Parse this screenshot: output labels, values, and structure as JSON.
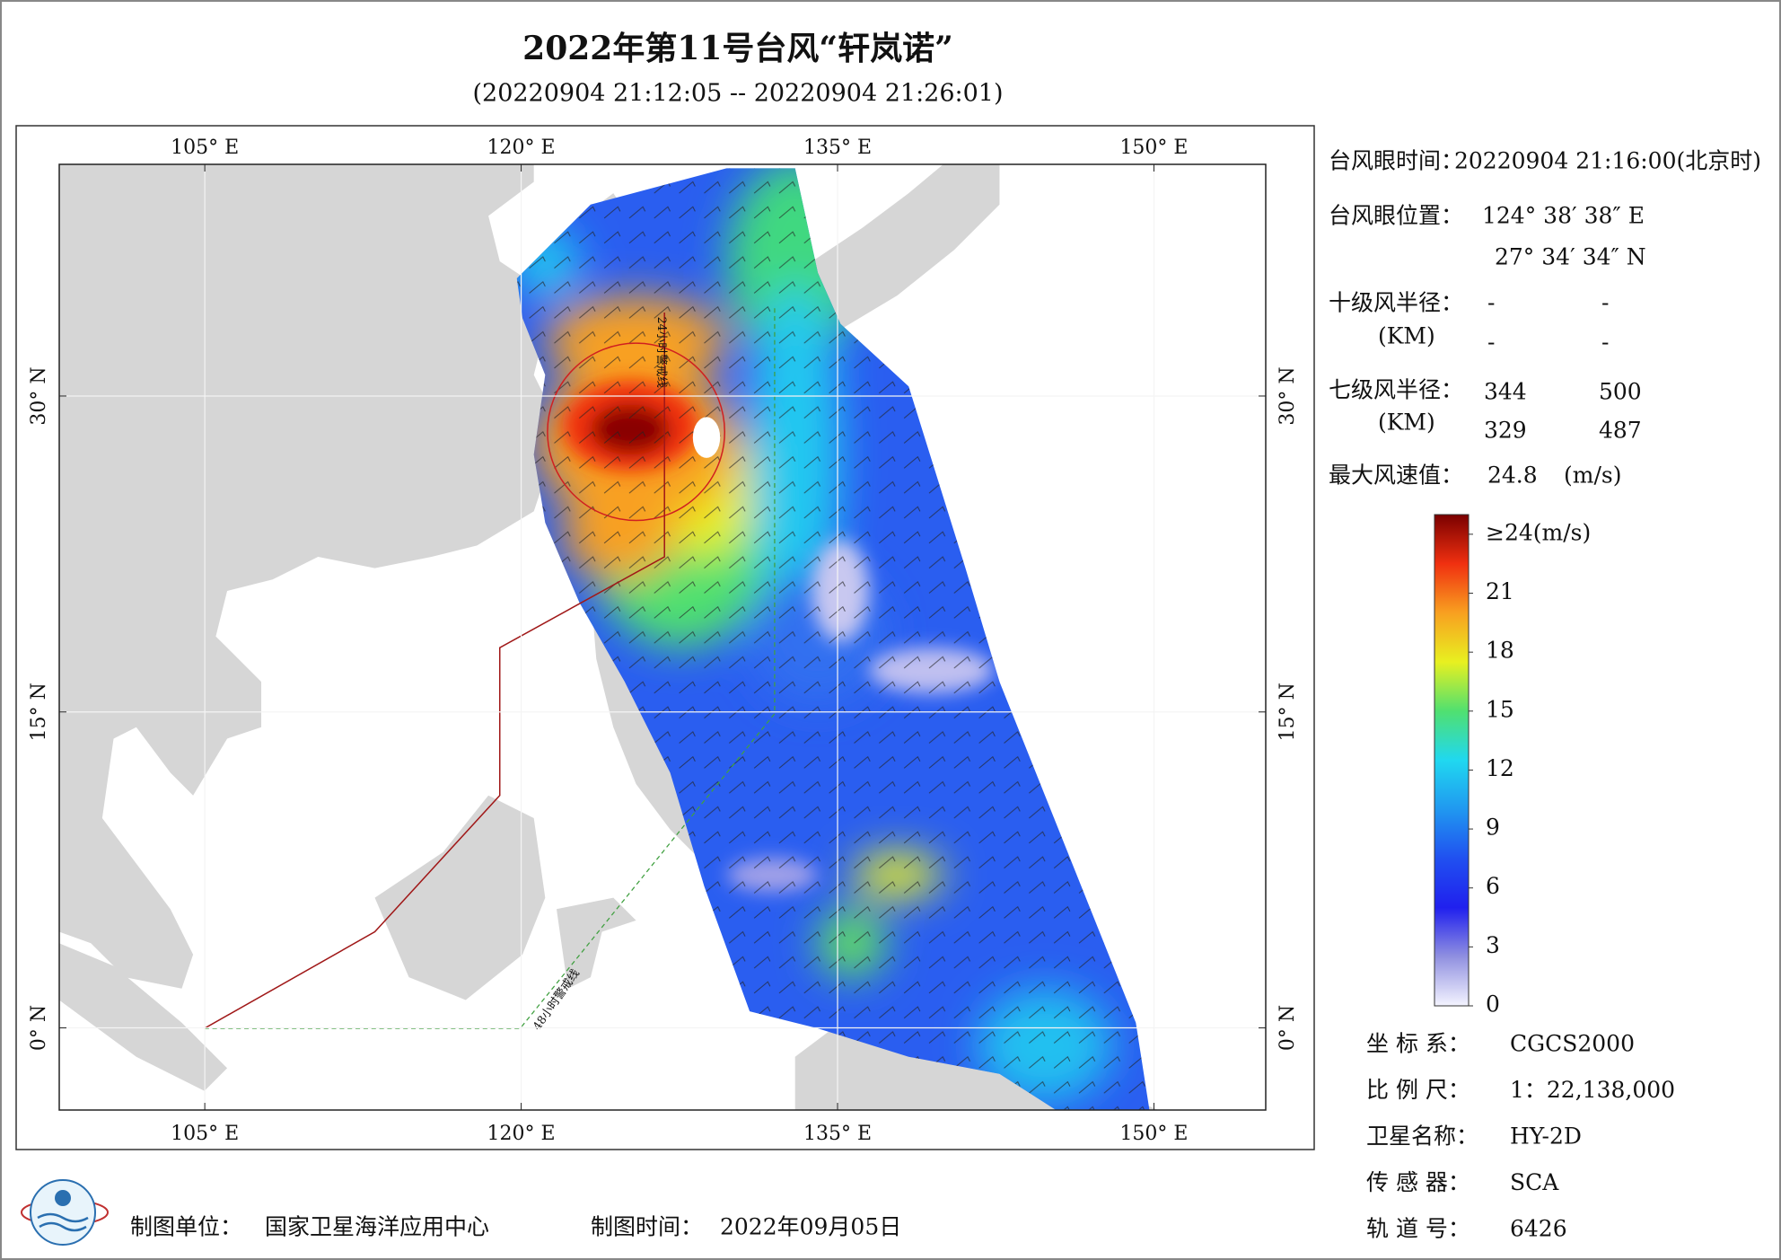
{
  "header": {
    "title": "2022年第11号台风“轩岚诺”",
    "subtitle": "(20220904 21:12:05 -- 20220904 21:26:01)"
  },
  "map": {
    "lon_range": [
      98.1,
      155.3
    ],
    "lat_range": [
      -3.9,
      41
    ],
    "lon_ticks": [
      {
        "value": 105,
        "label": "105° E"
      },
      {
        "value": 120,
        "label": "120° E"
      },
      {
        "value": 135,
        "label": "135° E"
      },
      {
        "value": 150,
        "label": "150° E"
      }
    ],
    "lat_ticks": [
      {
        "value": 0,
        "label": "0° N"
      },
      {
        "value": 15,
        "label": "15° N"
      },
      {
        "value": 30,
        "label": "30° N"
      }
    ],
    "annotations": [
      "24小时警戒线",
      "48小时警戒线"
    ]
  },
  "panel": {
    "eye_time": {
      "label": "台风眼时间：",
      "value": "20220904 21:16:00(北京时)"
    },
    "eye_position": {
      "label": "台风眼位置：",
      "lon": "124° 38′ 38″ E",
      "lat": "27° 34′ 34″ N"
    },
    "radius_10": {
      "label": "十级风半径：",
      "unit": "(KM)",
      "values": [
        [
          "-",
          "-"
        ],
        [
          "-",
          "-"
        ]
      ]
    },
    "radius_7": {
      "label": "七级风半径：",
      "unit": "(KM)",
      "values": [
        [
          344,
          500
        ],
        [
          329,
          487
        ]
      ]
    },
    "max_wind": {
      "label": "最大风速值：",
      "value": 24.8,
      "unit": "(m/s)"
    }
  },
  "colorbar": {
    "range": [
      0,
      25
    ],
    "colors": [
      "#f4f4ff",
      "#9090e0",
      "#2020ee",
      "#2050f0",
      "#2098f0",
      "#20d8f0",
      "#50e070",
      "#e8f020",
      "#f8a020",
      "#f03010",
      "#7a0000"
    ],
    "ticks": [
      {
        "value": 24,
        "label": "≥24(m/s)"
      },
      21,
      18,
      15,
      12,
      9,
      6,
      3,
      0
    ]
  },
  "metadata": [
    {
      "label": "坐 标 系：",
      "value": "CGCS2000"
    },
    {
      "label": "比 例 尺：",
      "value": "1：22,138,000"
    },
    {
      "label": "卫星名称：",
      "value": "HY-2D"
    },
    {
      "label": "传 感 器：",
      "value": "SCA"
    },
    {
      "label": "轨 道 号：",
      "value": "6426"
    }
  ],
  "footer": {
    "unit_label": "制图单位：",
    "unit": "国家卫星海洋应用中心",
    "time_label": "制图时间：",
    "time": "2022年09月05日"
  }
}
